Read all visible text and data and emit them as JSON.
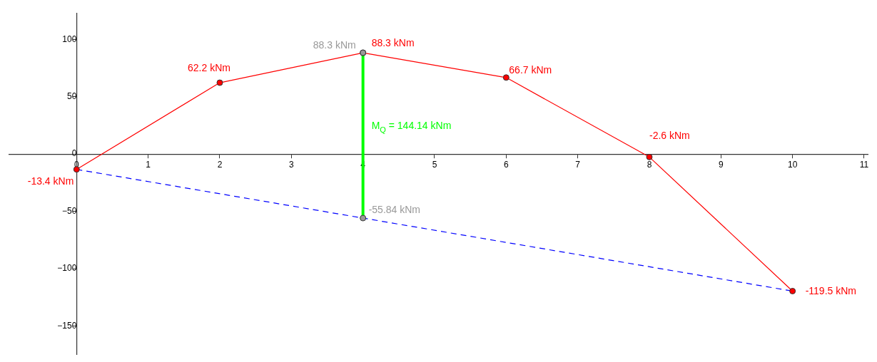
{
  "chart_data": {
    "type": "line",
    "xlim": [
      -0.94,
      11.05
    ],
    "ylim": [
      -175,
      123
    ],
    "xticks": [
      0,
      1,
      2,
      3,
      4,
      5,
      6,
      7,
      8,
      9,
      10,
      11
    ],
    "yticks": [
      {
        "value": -150,
        "label": "−150"
      },
      {
        "value": -100,
        "label": "−100"
      },
      {
        "value": -50,
        "label": "−50"
      },
      0,
      50,
      100
    ],
    "grid": false,
    "legend": false,
    "series": [
      {
        "color": "#ff0000",
        "x": [
          0,
          2,
          4,
          6,
          8,
          10
        ],
        "values": [
          -13.4,
          62.2,
          88.3,
          66.7,
          -2.6,
          -119.5
        ],
        "value_labels": [
          "-13.4 kNm",
          "62.2 kNm",
          "88.3 kNm",
          "66.7 kNm",
          "-2.6 kNm",
          "-119.5 kNm"
        ],
        "marker": "circle",
        "line_style": "solid"
      },
      {
        "color": "#0000ff",
        "x": [
          0,
          10
        ],
        "values": [
          -13.4,
          -119.5
        ],
        "marker": "none",
        "line_style": "dashed"
      },
      {
        "color": "#00ff00",
        "x": [
          4,
          4
        ],
        "values": [
          -55.84,
          88.3
        ],
        "marker": "none",
        "line_style": "solid"
      },
      {
        "type": "scatter",
        "color": "#999999",
        "x": [
          4,
          4
        ],
        "values": [
          88.3,
          -55.84
        ],
        "value_labels": [
          "88.3 kNm",
          "-55.84 kNm"
        ],
        "marker": "circle"
      }
    ],
    "annotations": [
      {
        "text": "M$_{Q}$ = 144.14 kNm",
        "x": 4,
        "y": 22
      }
    ]
  }
}
